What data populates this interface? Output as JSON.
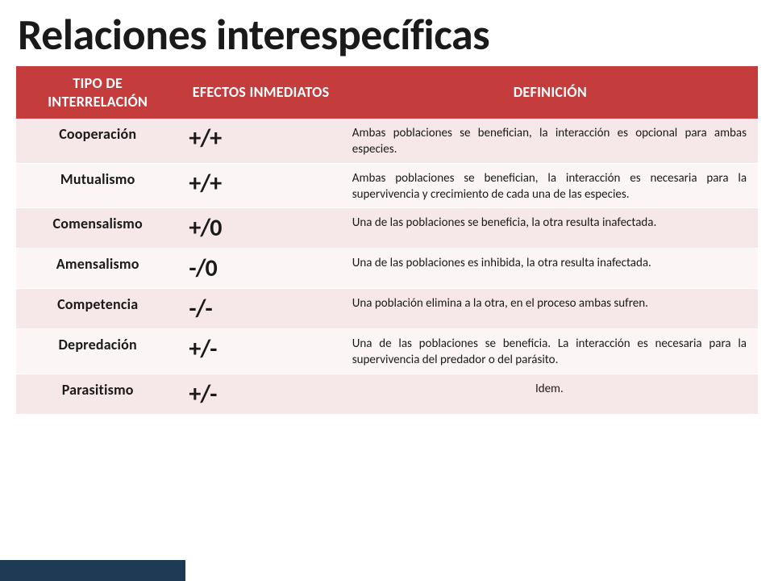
{
  "title": "Relaciones interespecíficas",
  "table": {
    "type": "table",
    "header_bg": "#c53c3d",
    "header_color": "#ffffff",
    "row_odd_bg": "#f6e8e8",
    "row_even_bg": "#fbf5f5",
    "footer_bg": "#1f3a54",
    "col_widths": [
      "22%",
      "22%",
      "56%"
    ],
    "columns": [
      "TIPO DE INTERRELACIÓN",
      "EFECTOS INMEDIATOS",
      "DEFINICIÓN"
    ],
    "rows": [
      {
        "type": "Cooperación",
        "effect": "+/+",
        "def": "Ambas poblaciones se benefician, la interacción es opcional para ambas especies.",
        "align": "justify"
      },
      {
        "type": "Mutualismo",
        "effect": "+/+",
        "def": "Ambas poblaciones se benefician, la interacción es necesaria para la supervivencia y crecimiento de cada una de las especies.",
        "align": "justify"
      },
      {
        "type": "Comensalismo",
        "effect": "+/0",
        "def": "Una de las poblaciones se beneficia, la otra resulta inafectada.",
        "align": "justify"
      },
      {
        "type": "Amensalismo",
        "effect": "-/0",
        "def": "Una de las poblaciones es inhibida, la otra resulta inafectada.",
        "align": "justify"
      },
      {
        "type": "Competencia",
        "effect": "-/-",
        "def": "Una población elimina a la otra, en el proceso ambas sufren.",
        "align": "justify"
      },
      {
        "type": "Depredación",
        "effect": "+/-",
        "def": "Una de las poblaciones se beneficia. La interacción es necesaria para la supervivencia del predador o del parásito.",
        "align": "justify"
      },
      {
        "type": "Parasitismo",
        "effect": "+/-",
        "def": "Idem.",
        "align": "center"
      }
    ]
  }
}
